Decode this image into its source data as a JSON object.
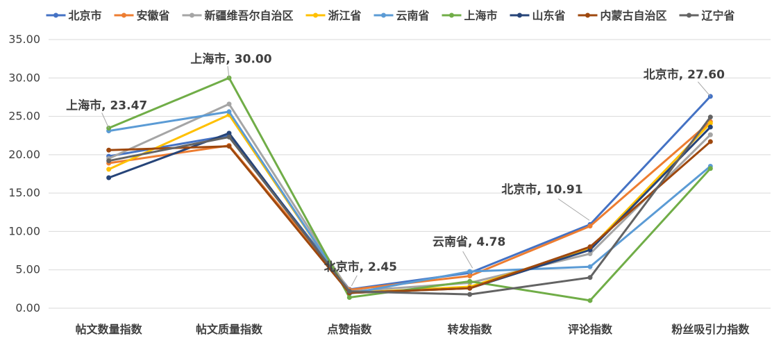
{
  "chart_data": {
    "type": "line",
    "title": "",
    "xlabel": "",
    "ylabel": "",
    "categories": [
      "帖文数量指数",
      "帖文质量指数",
      "点赞指数",
      "转发指数",
      "评论指数",
      "粉丝吸引力指数"
    ],
    "ylim": [
      0,
      35
    ],
    "yticks": [
      "0.00",
      "5.00",
      "10.00",
      "15.00",
      "20.00",
      "25.00",
      "30.00",
      "35.00"
    ],
    "grid": true,
    "legend_position": "top",
    "series": [
      {
        "name": "北京市",
        "color": "#4472C4",
        "values": [
          19.8,
          22.5,
          2.45,
          4.6,
          10.91,
          27.6
        ]
      },
      {
        "name": "安徽省",
        "color": "#ED7D31",
        "values": [
          18.9,
          21.2,
          2.4,
          4.2,
          10.7,
          24.3
        ]
      },
      {
        "name": "新疆维吾尔自治区",
        "color": "#A5A5A5",
        "values": [
          19.5,
          26.6,
          2.2,
          3.3,
          7.1,
          22.6
        ]
      },
      {
        "name": "浙江省",
        "color": "#FFC000",
        "values": [
          18.1,
          25.2,
          2.0,
          2.8,
          7.8,
          24.1
        ]
      },
      {
        "name": "云南省",
        "color": "#5B9BD5",
        "values": [
          23.1,
          25.6,
          1.9,
          4.78,
          5.4,
          18.5
        ]
      },
      {
        "name": "上海市",
        "color": "#70AD47",
        "values": [
          23.47,
          30.0,
          1.4,
          3.5,
          1.0,
          18.2
        ]
      },
      {
        "name": "山东省",
        "color": "#264478",
        "values": [
          17.0,
          22.8,
          2.0,
          2.6,
          7.6,
          23.6
        ]
      },
      {
        "name": "内蒙古自治区",
        "color": "#9E480E",
        "values": [
          20.6,
          21.1,
          2.0,
          2.6,
          8.0,
          21.7
        ]
      },
      {
        "name": "辽宁省",
        "color": "#636363",
        "values": [
          19.2,
          22.3,
          2.2,
          1.8,
          4.0,
          24.9
        ]
      }
    ],
    "annotations": [
      {
        "text": "上海市, 23.47",
        "series": "上海市",
        "category_index": 0
      },
      {
        "text": "上海市, 30.00",
        "series": "上海市",
        "category_index": 1
      },
      {
        "text": "北京市, 2.45",
        "series": "北京市",
        "category_index": 2
      },
      {
        "text": "云南省, 4.78",
        "series": "云南省",
        "category_index": 3
      },
      {
        "text": "北京市, 10.91",
        "series": "北京市",
        "category_index": 4
      },
      {
        "text": "北京市, 27.60",
        "series": "北京市",
        "category_index": 5
      }
    ]
  }
}
